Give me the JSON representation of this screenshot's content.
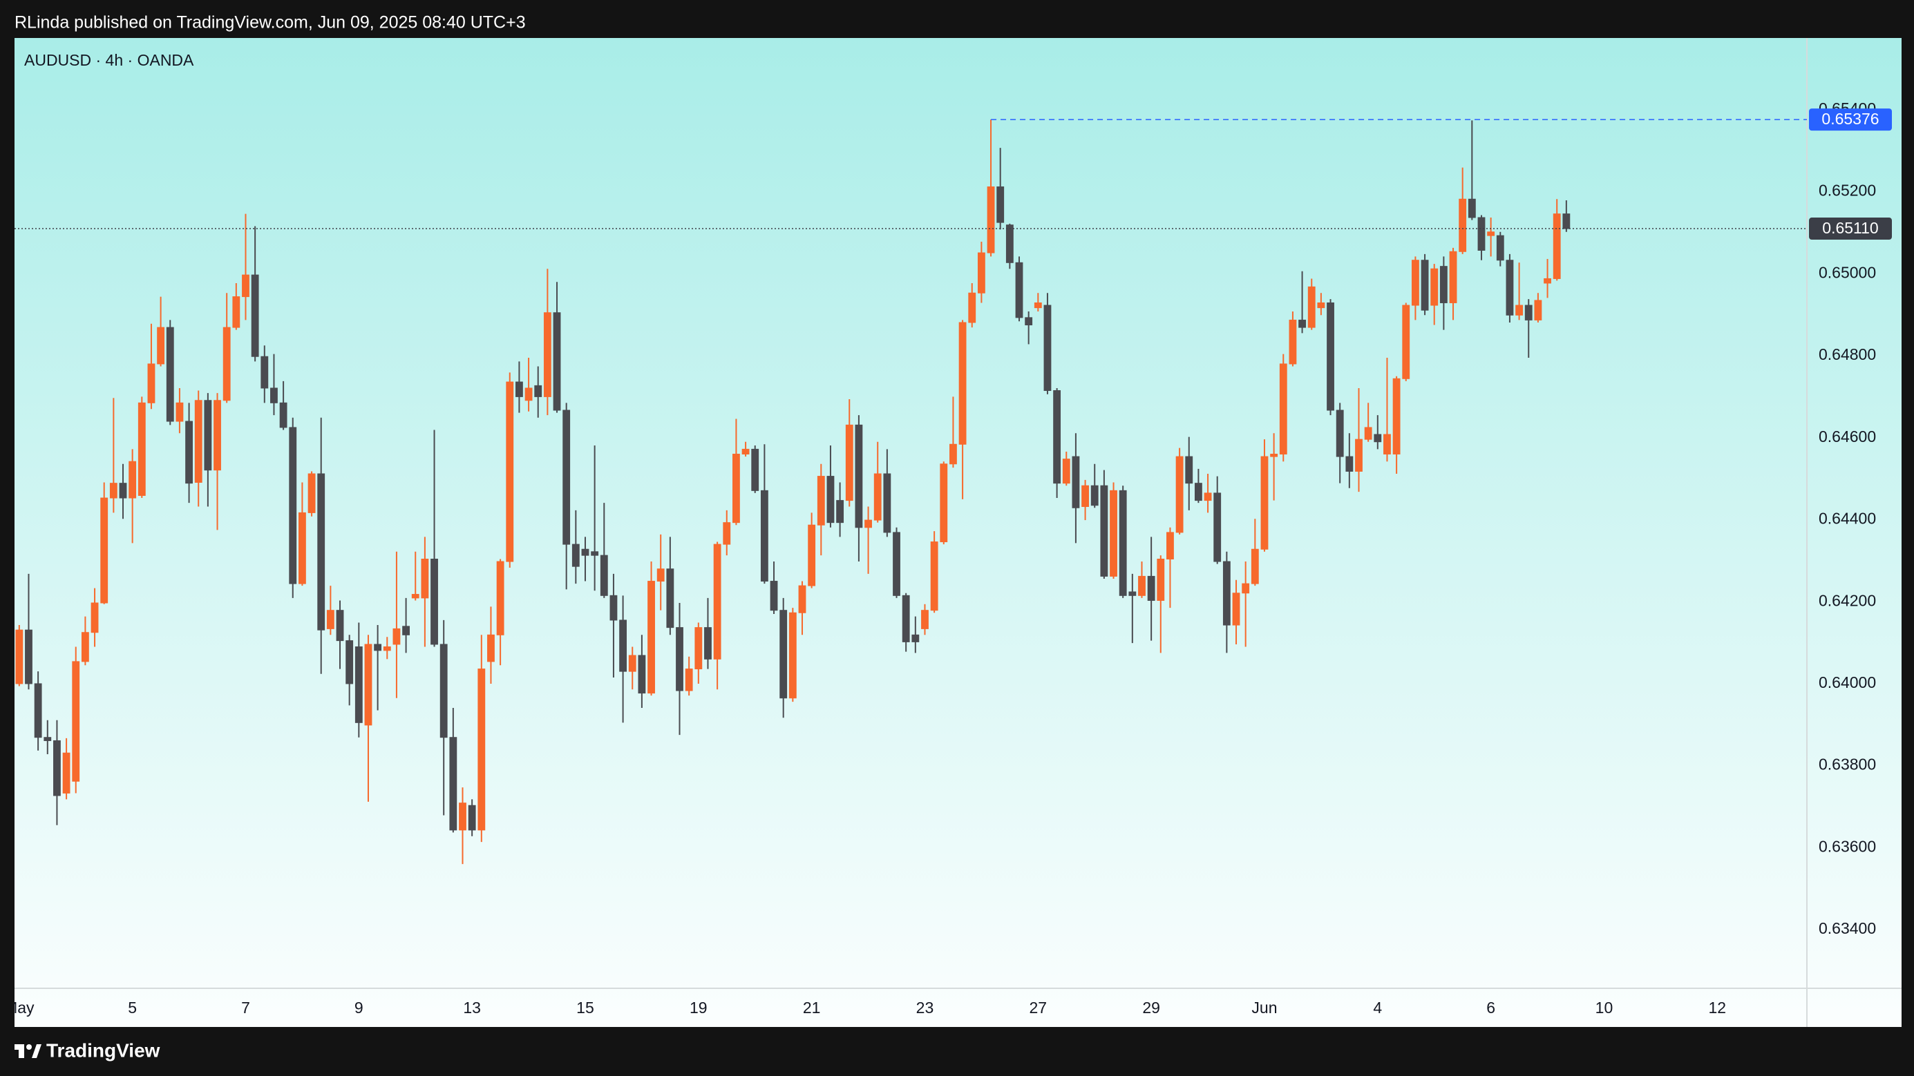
{
  "header": {
    "publisher": "RLinda published on TradingView.com, Jun 09, 2025 08:40 UTC+3"
  },
  "chart_data": {
    "type": "candlestick",
    "title": "AUDUSD · 4h · OANDA",
    "categories": [
      "May",
      null,
      null,
      null,
      null,
      null,
      null,
      null,
      null,
      null,
      null,
      null,
      "5",
      null,
      null,
      null,
      null,
      null,
      null,
      null,
      null,
      null,
      null,
      null,
      "7",
      null,
      null,
      null,
      null,
      null,
      null,
      null,
      null,
      null,
      null,
      null,
      "9",
      null,
      null,
      null,
      null,
      null,
      null,
      null,
      null,
      null,
      null,
      null,
      "13",
      null,
      null,
      null,
      null,
      null,
      null,
      null,
      null,
      null,
      null,
      null,
      "15",
      null,
      null,
      null,
      null,
      null,
      null,
      null,
      null,
      null,
      null,
      null,
      "19",
      null,
      null,
      null,
      null,
      null,
      null,
      null,
      null,
      null,
      null,
      null,
      "21",
      null,
      null,
      null,
      null,
      null,
      null,
      null,
      null,
      null,
      null,
      null,
      "23",
      null,
      null,
      null,
      null,
      null,
      null,
      null,
      null,
      null,
      null,
      null,
      "27",
      null,
      null,
      null,
      null,
      null,
      null,
      null,
      null,
      null,
      null,
      null,
      "29",
      null,
      null,
      null,
      null,
      null,
      null,
      null,
      null,
      null,
      null,
      null,
      "Jun",
      null,
      null,
      null,
      null,
      null,
      null,
      null,
      null,
      null,
      null,
      null,
      "4",
      null,
      null,
      null,
      null,
      null,
      null,
      null,
      null,
      null,
      null,
      null,
      "6",
      null,
      null,
      null,
      null,
      null,
      null,
      null,
      null,
      null,
      null,
      null,
      "10",
      null,
      null,
      null,
      null,
      null,
      null,
      null,
      null,
      null,
      null,
      null,
      "12",
      null,
      null,
      null,
      null,
      null,
      null,
      null,
      null,
      null
    ],
    "open": [
      0.64,
      0.64131,
      0.64,
      0.63869,
      0.63861,
      0.63733,
      0.63762,
      0.64054,
      0.64125,
      0.64197,
      0.64453,
      0.64489,
      0.64453,
      0.64459,
      0.64685,
      0.6478,
      0.64869,
      0.6464,
      0.6464,
      0.64491,
      0.64691,
      0.64521,
      0.64691,
      0.64869,
      0.64944,
      0.64997,
      0.64798,
      0.64721,
      0.64685,
      0.64625,
      0.64244,
      0.64417,
      0.64512,
      0.64134,
      0.64179,
      0.64105,
      0.6409,
      0.63899,
      0.64096,
      0.64081,
      0.64096,
      0.6414,
      0.64209,
      0.64209,
      0.64304,
      0.64096,
      0.63869,
      0.63643,
      0.63703,
      0.63643,
      0.64054,
      0.64119,
      0.64298,
      0.64736,
      0.64691,
      0.64727,
      0.647,
      0.64905,
      0.64667,
      0.6434,
      0.64328,
      0.64322,
      0.64313,
      0.64215,
      0.64155,
      0.6403,
      0.64069,
      0.63977,
      0.6425,
      0.6428,
      0.64137,
      0.63983,
      0.64036,
      0.64137,
      0.6406,
      0.6434,
      0.64393,
      0.6456,
      0.64572,
      0.64471,
      0.6425,
      0.64179,
      0.63965,
      0.64173,
      0.64239,
      0.64387,
      0.64506,
      0.64447,
      0.64447,
      0.64631,
      0.64381,
      0.64399,
      0.64512,
      0.64369,
      0.64215,
      0.64119,
      0.64134,
      0.64179,
      0.64346,
      0.64536,
      0.64584,
      0.64881,
      0.64953,
      0.65051,
      0.65212,
      0.65119,
      0.65027,
      0.64893,
      0.64917,
      0.64923,
      0.64715,
      0.64489,
      0.64554,
      0.64432,
      0.64483,
      0.64483,
      0.64262,
      0.64471,
      0.64224,
      0.64215,
      0.64262,
      0.64203,
      0.64304,
      0.64369,
      0.64554,
      0.64489,
      0.64447,
      0.64465,
      0.64298,
      0.64143,
      0.64221,
      0.64244,
      0.64328,
      0.64554,
      0.6456,
      0.6478,
      0.64887,
      0.64869,
      0.64917,
      0.64929,
      0.64667,
      0.64554,
      0.64518,
      0.64596,
      0.64608,
      0.6456,
      0.6456,
      0.64744,
      0.64923,
      0.65033,
      0.64923,
      0.65018,
      0.64929,
      0.65054,
      0.65182,
      0.65137,
      0.65093,
      0.65093,
      0.65033,
      0.64899,
      0.64923,
      0.64887,
      0.64977,
      0.64988,
      0.65146,
      null,
      null,
      null,
      null,
      null,
      null,
      null,
      null,
      null,
      null,
      null,
      null,
      null,
      null,
      null,
      null,
      null,
      null,
      null,
      null,
      null,
      null,
      null,
      null,
      null
    ],
    "high": [
      0.64143,
      0.64268,
      0.6403,
      0.63911,
      0.63911,
      0.63867,
      0.6409,
      0.64164,
      0.64233,
      0.64491,
      0.64697,
      0.64536,
      0.64572,
      0.647,
      0.64878,
      0.64944,
      0.64887,
      0.64721,
      0.64685,
      0.64715,
      0.64709,
      0.64709,
      0.64953,
      0.64977,
      0.65146,
      0.65116,
      0.64825,
      0.64804,
      0.64738,
      0.64649,
      0.64491,
      0.64518,
      0.64649,
      0.64239,
      0.64203,
      0.64119,
      0.64149,
      0.64119,
      0.64143,
      0.64114,
      0.64322,
      0.64209,
      0.64322,
      0.64358,
      0.64619,
      0.64155,
      0.63941,
      0.63747,
      0.63718,
      0.64119,
      0.64188,
      0.64304,
      0.64759,
      0.64786,
      0.64795,
      0.64774,
      0.65012,
      0.6498,
      0.64685,
      0.64423,
      0.64358,
      0.64581,
      0.64441,
      0.64268,
      0.64215,
      0.6409,
      0.64119,
      0.64298,
      0.64364,
      0.64358,
      0.64197,
      0.64066,
      0.64149,
      0.64209,
      0.64346,
      0.64423,
      0.64646,
      0.6459,
      0.64581,
      0.64584,
      0.64298,
      0.64209,
      0.64185,
      0.6425,
      0.64417,
      0.64536,
      0.64581,
      0.64491,
      0.64694,
      0.64655,
      0.64432,
      0.6459,
      0.64572,
      0.64381,
      0.64221,
      0.64164,
      0.64194,
      0.64372,
      0.64542,
      0.647,
      0.64887,
      0.64977,
      0.65078,
      0.65376,
      0.65307,
      0.65122,
      0.65042,
      0.64908,
      0.64953,
      0.64953,
      0.64721,
      0.64566,
      0.64611,
      0.64497,
      0.64536,
      0.64521,
      0.64491,
      0.64483,
      0.64268,
      0.64298,
      0.64358,
      0.64313,
      0.64381,
      0.64575,
      0.64602,
      0.64524,
      0.64512,
      0.64506,
      0.64322,
      0.64253,
      0.64298,
      0.64402,
      0.64596,
      0.64611,
      0.64804,
      0.64908,
      0.65006,
      0.64988,
      0.64953,
      0.64938,
      0.64685,
      0.64611,
      0.64721,
      0.64685,
      0.64655,
      0.64795,
      0.6475,
      0.64929,
      0.65042,
      0.65048,
      0.65024,
      0.65042,
      0.65063,
      0.65259,
      0.65374,
      0.65143,
      0.65137,
      0.65102,
      0.65048,
      0.65027,
      0.64938,
      0.64953,
      0.65036,
      0.65182,
      0.65179,
      null,
      null,
      null,
      null,
      null,
      null,
      null,
      null,
      null,
      null,
      null,
      null,
      null,
      null,
      null,
      null,
      null,
      null,
      null,
      null,
      null,
      null,
      null,
      null,
      null
    ],
    "low": [
      0.63994,
      0.63986,
      0.63837,
      0.63828,
      0.63655,
      0.63718,
      0.63733,
      0.64045,
      0.6409,
      0.64194,
      0.64417,
      0.64402,
      0.64343,
      0.64453,
      0.6467,
      0.64774,
      0.64631,
      0.64611,
      0.64441,
      0.64432,
      0.64432,
      0.64375,
      0.64685,
      0.64863,
      0.64887,
      0.64786,
      0.64685,
      0.64655,
      0.64619,
      0.64209,
      0.64239,
      0.64408,
      0.64024,
      0.64119,
      0.64036,
      0.63947,
      0.63869,
      0.63712,
      0.63935,
      0.6406,
      0.63965,
      0.64075,
      0.64203,
      0.6409,
      0.6409,
      0.63679,
      0.63637,
      0.6356,
      0.63628,
      0.63614,
      0.64,
      0.64045,
      0.64283,
      0.64661,
      0.64664,
      0.64649,
      0.64655,
      0.64661,
      0.6423,
      0.64244,
      0.6425,
      0.64227,
      0.64209,
      0.64015,
      0.63905,
      0.63986,
      0.63941,
      0.63971,
      0.64179,
      0.64119,
      0.63875,
      0.63971,
      0.64,
      0.64036,
      0.63986,
      0.64313,
      0.64387,
      0.64554,
      0.64465,
      0.64244,
      0.6417,
      0.63917,
      0.63956,
      0.64119,
      0.64233,
      0.64313,
      0.64381,
      0.64358,
      0.64432,
      0.64298,
      0.64268,
      0.64393,
      0.64358,
      0.64209,
      0.64078,
      0.64075,
      0.64119,
      0.64173,
      0.6434,
      0.64527,
      0.6445,
      0.64869,
      0.64929,
      0.65042,
      0.65108,
      0.65012,
      0.64884,
      0.64828,
      0.64908,
      0.64706,
      0.64453,
      0.64483,
      0.64343,
      0.64399,
      0.64429,
      0.64256,
      0.64256,
      0.64209,
      0.64099,
      0.64209,
      0.64105,
      0.64075,
      0.64185,
      0.64364,
      0.64423,
      0.64441,
      0.64417,
      0.64292,
      0.64075,
      0.64096,
      0.6409,
      0.64239,
      0.64322,
      0.64447,
      0.64542,
      0.64774,
      0.64855,
      0.64863,
      0.64899,
      0.64655,
      0.64489,
      0.64477,
      0.64468,
      0.6459,
      0.64572,
      0.64542,
      0.64512,
      0.64738,
      0.64887,
      0.64899,
      0.64875,
      0.64863,
      0.64887,
      0.65048,
      0.65131,
      0.65033,
      0.65042,
      0.65018,
      0.64881,
      0.64887,
      0.64795,
      0.64881,
      0.64941,
      0.64983,
      0.65102,
      null,
      null,
      null,
      null,
      null,
      null,
      null,
      null,
      null,
      null,
      null,
      null,
      null,
      null,
      null,
      null,
      null,
      null,
      null,
      null,
      null,
      null,
      null,
      null,
      null
    ],
    "close": [
      0.64131,
      0.64,
      0.63869,
      0.63861,
      0.63727,
      0.63831,
      0.64054,
      0.64125,
      0.64197,
      0.64453,
      0.64489,
      0.64453,
      0.64542,
      0.64685,
      0.6478,
      0.64869,
      0.6464,
      0.64685,
      0.64489,
      0.64691,
      0.64521,
      0.64691,
      0.64869,
      0.64944,
      0.64997,
      0.64798,
      0.64721,
      0.64685,
      0.64625,
      0.64244,
      0.64417,
      0.64512,
      0.64131,
      0.64179,
      0.64105,
      0.64,
      0.63905,
      0.64096,
      0.64081,
      0.6409,
      0.64134,
      0.64119,
      0.64218,
      0.64304,
      0.64096,
      0.63869,
      0.63643,
      0.63709,
      0.63643,
      0.64036,
      0.64119,
      0.64298,
      0.64736,
      0.647,
      0.64721,
      0.647,
      0.64905,
      0.64667,
      0.6434,
      0.64286,
      0.64313,
      0.64313,
      0.64215,
      0.64155,
      0.6403,
      0.64069,
      0.63977,
      0.6425,
      0.6428,
      0.64137,
      0.63983,
      0.64036,
      0.64137,
      0.6406,
      0.6434,
      0.64393,
      0.6456,
      0.64572,
      0.64471,
      0.6425,
      0.64179,
      0.63965,
      0.64173,
      0.64239,
      0.64387,
      0.64506,
      0.64393,
      0.64393,
      0.64631,
      0.64381,
      0.64399,
      0.64512,
      0.64369,
      0.64215,
      0.64102,
      0.64102,
      0.64179,
      0.64346,
      0.64536,
      0.64584,
      0.64881,
      0.64953,
      0.65051,
      0.65212,
      0.65125,
      0.65027,
      0.64893,
      0.64875,
      0.64929,
      0.64715,
      0.64489,
      0.64548,
      0.64429,
      0.64483,
      0.64435,
      0.64262,
      0.64471,
      0.64215,
      0.64215,
      0.64262,
      0.64203,
      0.64304,
      0.64369,
      0.64554,
      0.64489,
      0.64447,
      0.64465,
      0.64298,
      0.64143,
      0.64221,
      0.64244,
      0.64328,
      0.64554,
      0.6456,
      0.6478,
      0.64887,
      0.64869,
      0.64968,
      0.64929,
      0.64667,
      0.64554,
      0.64518,
      0.64596,
      0.64625,
      0.6459,
      0.64608,
      0.64744,
      0.64923,
      0.65033,
      0.64911,
      0.65012,
      0.64929,
      0.65054,
      0.65182,
      0.65137,
      0.65057,
      0.65102,
      0.65033,
      0.64899,
      0.64923,
      0.64887,
      0.64935,
      0.64988,
      0.65146,
      0.6511,
      null,
      null,
      null,
      null,
      null,
      null,
      null,
      null,
      null,
      null,
      null,
      null,
      null,
      null,
      null,
      null,
      null,
      null,
      null,
      null,
      null,
      null,
      null,
      null,
      null
    ],
    "up_color": "#f7692c",
    "down_color": "#4a4b50",
    "ylim": [
      0.63257,
      0.65575
    ],
    "yticks": [
      {
        "value": 0.654,
        "label": "0.65400"
      },
      {
        "value": 0.652,
        "label": "0.65200"
      },
      {
        "value": 0.65,
        "label": "0.65000"
      },
      {
        "value": 0.648,
        "label": "0.64800"
      },
      {
        "value": 0.646,
        "label": "0.64600"
      },
      {
        "value": 0.644,
        "label": "0.64400"
      },
      {
        "value": 0.642,
        "label": "0.64200"
      },
      {
        "value": 0.64,
        "label": "0.64000"
      },
      {
        "value": 0.638,
        "label": "0.63800"
      },
      {
        "value": 0.636,
        "label": "0.63600"
      },
      {
        "value": 0.634,
        "label": "0.63400"
      }
    ],
    "price_lines": [
      {
        "value": 0.6511,
        "label": "0.65110",
        "color": "#3b3e47",
        "style": "dotted"
      },
      {
        "value": 0.65376,
        "label": "0.65376",
        "color": "#2962ff",
        "style": "dashed"
      }
    ],
    "grid": false
  },
  "footer": {
    "brand": "TradingView"
  }
}
